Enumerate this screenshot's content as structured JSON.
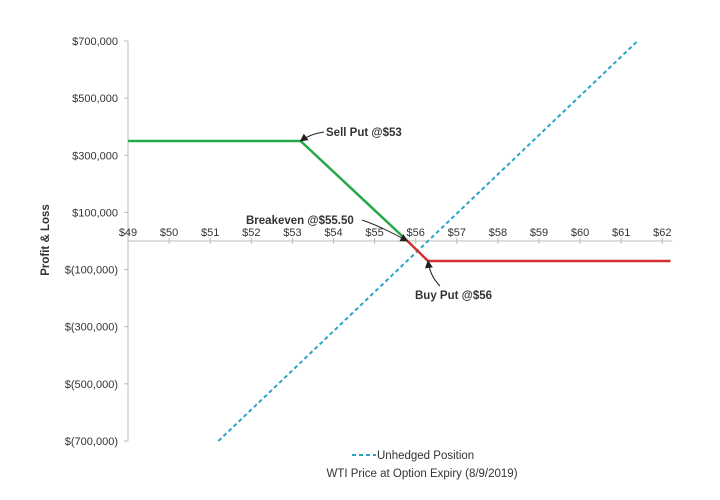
{
  "chart_data": {
    "type": "line",
    "title": "",
    "xlabel": "WTI Price at Option Expiry (8/9/2019)",
    "ylabel": "Profit & Loss",
    "xlim": [
      49,
      62
    ],
    "ylim": [
      -700000,
      700000
    ],
    "x_ticks": [
      49,
      50,
      51,
      52,
      53,
      54,
      55,
      56,
      57,
      58,
      59,
      60,
      61,
      62
    ],
    "x_tick_labels": [
      "$49",
      "$50",
      "$51",
      "$52",
      "$53",
      "$54",
      "$55",
      "$56",
      "$57",
      "$58",
      "$59",
      "$60",
      "$61",
      "$62"
    ],
    "y_ticks": [
      700000,
      500000,
      300000,
      100000,
      -100000,
      -300000,
      -500000,
      -700000
    ],
    "y_tick_labels": [
      "$700,000",
      "$500,000",
      "$300,000",
      "$100,000",
      "$(100,000)",
      "$(300,000)",
      "$(500,000)",
      "$(700,000)"
    ],
    "grid": false,
    "legend_position": "bottom-center",
    "series": [
      {
        "name": "Unhedged Position",
        "style": "dashed",
        "color": "#2aa3c9",
        "points": [
          [
            51.2,
            -700000
          ],
          [
            61.4,
            700000
          ]
        ]
      },
      {
        "name": "",
        "style": "solid",
        "color": "#23a84a",
        "points": [
          [
            49,
            350000
          ],
          [
            53.2,
            350000
          ],
          [
            55.8,
            0
          ]
        ]
      },
      {
        "name": "",
        "style": "solid",
        "color": "#d42e2e",
        "points": [
          [
            55.8,
            0
          ],
          [
            56.3,
            -70000
          ],
          [
            62.2,
            -70000
          ]
        ]
      }
    ],
    "annotations": [
      {
        "id": "sell",
        "text": "Sell Put @$53",
        "target": [
          53.2,
          350000
        ]
      },
      {
        "id": "breakeven",
        "text": "Breakeven @$55.50",
        "target": [
          55.8,
          0
        ]
      },
      {
        "id": "buy",
        "text": "Buy Put @$56",
        "target": [
          56.3,
          -70000
        ]
      }
    ]
  },
  "colors": {
    "axis": "#bbbbbb",
    "text": "#333333",
    "unhedged": "#2aa3c9",
    "sell_put": "#23a84a",
    "buy_put": "#d42e2e"
  }
}
